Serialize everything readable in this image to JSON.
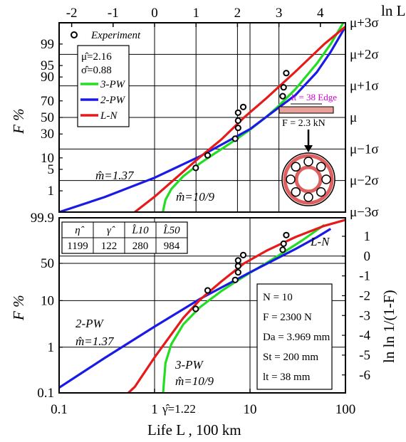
{
  "chart_data": [
    {
      "type": "line",
      "panel": "upper",
      "title": "",
      "xlabel_top": "ln L",
      "ylabel": "F  %",
      "x_top_ticks": [
        "-2",
        "-1",
        "0",
        "1",
        "2",
        "3",
        "4"
      ],
      "y_left_ticks": [
        "99",
        "95",
        "90",
        "70",
        "50",
        "30",
        "10",
        "5",
        "1"
      ],
      "y_right_ticks": [
        "μ+3σ",
        "μ+2σ",
        "μ+1σ",
        "μ",
        "μ−1σ",
        "μ−2σ",
        "μ−3σ"
      ],
      "x_scale": "log",
      "xlim": [
        0.1,
        100
      ],
      "y_scale": "normal probability",
      "ylim": [
        "μ−3σ",
        "μ+3σ"
      ],
      "grid": true,
      "legend_position": "upper-left",
      "legend": {
        "experiment_label": "Experiment",
        "mu_hat": "μ̂=2.16",
        "sigma_hat": "σ̂=0.88",
        "entries": [
          {
            "name": "3-PW",
            "color": "#22dd22"
          },
          {
            "name": "2-PW",
            "color": "#1a1ae6"
          },
          {
            "name": "L-N",
            "color": "#e61a1a"
          }
        ]
      },
      "experiment_points": [
        {
          "x": 2.7,
          "F": 5.5
        },
        {
          "x": 3.6,
          "F": 11.5
        },
        {
          "x": 7.0,
          "F": 25
        },
        {
          "x": 7.5,
          "F": 37
        },
        {
          "x": 7.5,
          "F": 46
        },
        {
          "x": 7.5,
          "F": 56
        },
        {
          "x": 8.5,
          "F": 63
        },
        {
          "x": 22,
          "F": 75
        },
        {
          "x": 22.5,
          "F": 83
        },
        {
          "x": 24,
          "F": 92
        }
      ],
      "series": [
        {
          "name": "3-PW",
          "color": "#22dd22",
          "x": [
            1.22,
            1.3,
            1.5,
            2,
            3,
            4,
            5,
            7,
            10,
            15,
            20,
            30,
            50,
            70,
            95
          ],
          "F": [
            0.135,
            0.45,
            1.17,
            3.12,
            7.32,
            11.6,
            15.7,
            23.7,
            34.9,
            51.3,
            64.3,
            81.6,
            95.6,
            99.0,
            99.87
          ]
        },
        {
          "name": "2-PW",
          "color": "#1a1ae6",
          "x": [
            0.1,
            0.3,
            1,
            3,
            10,
            30,
            50,
            70,
            100
          ],
          "F": [
            0.13,
            0.58,
            2.8,
            10.9,
            35.6,
            76.1,
            92.4,
            98.1,
            99.8
          ]
        },
        {
          "name": "L-N",
          "color": "#e61a1a",
          "x": [
            0.62,
            1,
            2,
            3,
            5,
            8.67,
            15,
            30,
            60,
            100,
            120
          ],
          "F": [
            0.135,
            0.6,
            4.3,
            10.5,
            24.2,
            50,
            73.3,
            92.7,
            99.0,
            99.8,
            99.87
          ]
        }
      ],
      "annotations": {
        "m_2pw": "m̂=1.37",
        "m_3pw": "m̂=10/9",
        "edge_label": "lt = 38 Edge",
        "load_label": "F = 2.3 kN"
      }
    },
    {
      "type": "line",
      "panel": "lower",
      "title": "",
      "xlabel": "Life  L ,  100 km",
      "ylabel": "F  %",
      "ylabel_right": "ln ln 1/(1-F)",
      "x_ticks": [
        "0.1",
        "1",
        "10",
        "100"
      ],
      "y_left_ticks": [
        "99.9",
        "50",
        "10",
        "1",
        "0.1"
      ],
      "y_right_ticks": [
        "1",
        "0",
        "-1",
        "-2",
        "-3",
        "-4",
        "-5",
        "-6"
      ],
      "x_scale": "log",
      "xlim": [
        0.1,
        100
      ],
      "y_scale": "weibull",
      "ylim": [
        0.1,
        99.9
      ],
      "grid": true,
      "table": {
        "headers": [
          "η̂",
          "γ̂",
          "L̂10",
          "L̂50"
        ],
        "values": [
          "1199",
          "122",
          "280",
          "984"
        ]
      },
      "experiment_points": [
        {
          "x": 2.7,
          "F": 6.7
        },
        {
          "x": 3.6,
          "F": 16.2
        },
        {
          "x": 7.0,
          "F": 25.9
        },
        {
          "x": 7.5,
          "F": 35.6
        },
        {
          "x": 7.5,
          "F": 45.4
        },
        {
          "x": 7.5,
          "F": 55.2
        },
        {
          "x": 8.5,
          "F": 65.0
        },
        {
          "x": 22,
          "F": 74.8
        },
        {
          "x": 22.5,
          "F": 84.6
        },
        {
          "x": 24,
          "F": 94.4
        }
      ],
      "series": [
        {
          "name": "3-PW",
          "color": "#22dd22",
          "x": [
            1.23,
            1.3,
            1.5,
            2,
            3,
            5,
            7,
            10,
            20,
            35,
            60
          ],
          "F": [
            0.1,
            0.45,
            1.17,
            3.12,
            7.32,
            15.7,
            23.7,
            34.9,
            64.3,
            88.8,
            99.2
          ]
        },
        {
          "name": "2-PW",
          "color": "#1a1ae6",
          "x": [
            0.1,
            0.3,
            1,
            3,
            10,
            30,
            50,
            70
          ],
          "F": [
            0.13,
            0.58,
            2.8,
            10.9,
            35.6,
            76.1,
            92.4,
            98.1
          ]
        },
        {
          "name": "L-N",
          "color": "#e61a1a",
          "x": [
            0.53,
            0.62,
            1,
            2,
            3,
            5,
            8.67,
            15,
            30,
            60,
            100
          ],
          "F": [
            0.1,
            0.135,
            0.6,
            4.3,
            10.5,
            24.2,
            50,
            73.3,
            92.7,
            99.0,
            99.8
          ]
        }
      ],
      "annotations": {
        "ln_label": "L-N",
        "pw2_label": "2-PW",
        "m_2pw": "m̂=1.37",
        "pw3_label": "3-PW",
        "m_3pw": "m̂=10/9",
        "gamma": "γ̂=1.22"
      },
      "params": [
        "N = 10",
        "F = 2300 N",
        "Da = 3.969 mm",
        "St = 200 mm",
        "lt = 38 mm"
      ]
    }
  ]
}
